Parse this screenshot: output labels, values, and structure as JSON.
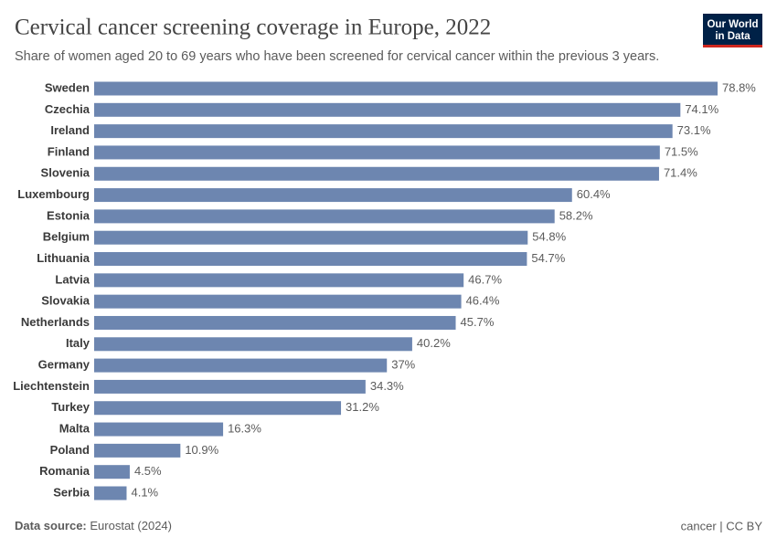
{
  "chart_data": {
    "type": "bar",
    "orientation": "horizontal",
    "title": "Cervical cancer screening coverage in Europe, 2022",
    "subtitle": "Share of women aged 20 to 69 years who have been screened for cervical cancer within the previous 3 years.",
    "categories": [
      "Sweden",
      "Czechia",
      "Ireland",
      "Finland",
      "Slovenia",
      "Luxembourg",
      "Estonia",
      "Belgium",
      "Lithuania",
      "Latvia",
      "Slovakia",
      "Netherlands",
      "Italy",
      "Germany",
      "Liechtenstein",
      "Turkey",
      "Malta",
      "Poland",
      "Romania",
      "Serbia"
    ],
    "values": [
      78.8,
      74.1,
      73.1,
      71.5,
      71.4,
      60.4,
      58.2,
      54.8,
      54.7,
      46.7,
      46.4,
      45.7,
      40.2,
      37,
      34.3,
      31.2,
      16.3,
      10.9,
      4.5,
      4.1
    ],
    "value_labels": [
      "78.8%",
      "74.1%",
      "73.1%",
      "71.5%",
      "71.4%",
      "60.4%",
      "58.2%",
      "54.8%",
      "54.7%",
      "46.7%",
      "46.4%",
      "45.7%",
      "40.2%",
      "37%",
      "34.3%",
      "31.2%",
      "16.3%",
      "10.9%",
      "4.5%",
      "4.1%"
    ],
    "color": "#6d86b0",
    "source_label": "Data source:",
    "source": "Eurostat (2024)",
    "footer_right": "cancer | CC BY",
    "logo": [
      "Our World",
      "in Data"
    ]
  }
}
